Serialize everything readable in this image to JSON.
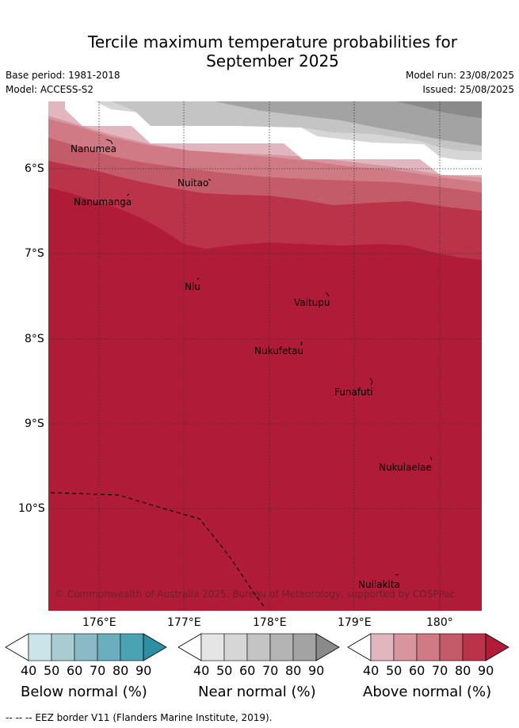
{
  "title_line1": "Tercile maximum temperature probabilities for",
  "title_line2": "September 2025",
  "base_period": "Base period: 1981-2018",
  "model": "Model: ACCESS-S2",
  "model_run": "Model run: 23/08/2025",
  "issued": "Issued: 25/08/2025",
  "lon_labels": [
    "176°E",
    "177°E",
    "178°E",
    "179°E",
    "180°"
  ],
  "lat_labels": [
    "6°S",
    "7°S",
    "8°S",
    "9°S",
    "10°S"
  ],
  "places": [
    "Nanumea",
    "Nuitao",
    "Nanumanga",
    "Niu",
    "Vaitupu",
    "Nukufetau",
    "Funafuti",
    "Nukulaelae",
    "Nuilakita"
  ],
  "copyright": "© Commonwealth of Australia 2025, Bureau of Meteorology, supported by COSPPac",
  "legend": {
    "below": {
      "title": "Below normal (%)",
      "ticks": [
        "40",
        "50",
        "60",
        "70",
        "80",
        "90"
      ],
      "colors": [
        "#cbe4ea",
        "#a9ccd3",
        "#8bbac7",
        "#6bafbf",
        "#4aa3b3",
        "#2e8ea2"
      ]
    },
    "near": {
      "title": "Near normal (%)",
      "ticks": [
        "40",
        "50",
        "60",
        "70",
        "80",
        "90"
      ],
      "colors": [
        "#e5e5e5",
        "#d6d6d6",
        "#c4c4c4",
        "#b4b4b4",
        "#a3a3a3",
        "#8a8a8a"
      ]
    },
    "above": {
      "title": "Above normal (%)",
      "ticks": [
        "40",
        "50",
        "60",
        "70",
        "80",
        "90"
      ],
      "colors": [
        "#e2b6bf",
        "#d8959e",
        "#cf7a85",
        "#c45b68",
        "#bb3348",
        "#b01c38"
      ]
    }
  },
  "footer": "--  --  -- EEZ border V11 (Flanders Marine Institute, 2019)."
}
